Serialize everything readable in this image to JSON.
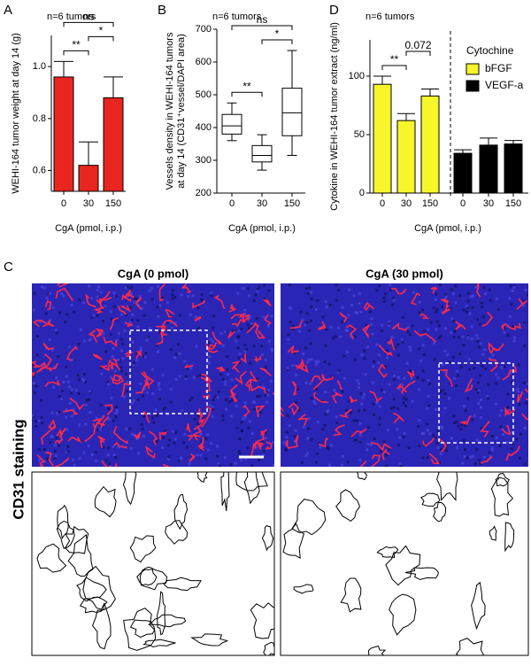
{
  "chart_data": [
    {
      "type": "bar",
      "panel": "A",
      "annotation": "n=6 tumors",
      "ylabel": [
        "WEHI-164 tumor weight at day 14 (g)"
      ],
      "xlabel": "CgA (pmol, i.p.)",
      "categories": [
        "0",
        "30",
        "150"
      ],
      "values": [
        0.96,
        0.62,
        0.88
      ],
      "errors": [
        0.06,
        0.09,
        0.08
      ],
      "color": "#e8261f",
      "ylim": [
        0.52,
        1.12
      ],
      "yticks": [
        0.6,
        0.8,
        {
          "value": 1.0,
          "label": "1.0"
        }
      ],
      "comparisons": [
        {
          "between": [
            "0",
            "30"
          ],
          "label": "**"
        },
        {
          "between": [
            "30",
            "150"
          ],
          "label": "*"
        },
        {
          "between": [
            "0",
            "150"
          ],
          "label": "ns"
        }
      ]
    },
    {
      "type": "box",
      "panel": "B",
      "annotation": "n=6 tumors",
      "ylabel": [
        "Vessels density in WEHI-164 tumors",
        "at day 14 (CD31⁺vessel/DAPI area)"
      ],
      "xlabel": "CgA (pmol, i.p.)",
      "categories": [
        "0",
        "30",
        "150"
      ],
      "boxes": [
        {
          "min": 360,
          "q1": 380,
          "median": 405,
          "q3": 440,
          "max": 475
        },
        {
          "min": 270,
          "q1": 295,
          "median": 315,
          "q3": 345,
          "max": 378
        },
        {
          "min": 315,
          "q1": 375,
          "median": 445,
          "q3": 520,
          "max": 635
        }
      ],
      "ylim": [
        200,
        700
      ],
      "yticks": [
        200,
        300,
        400,
        500,
        600,
        700
      ],
      "comparisons": [
        {
          "between": [
            "0",
            "30"
          ],
          "label": "**"
        },
        {
          "between": [
            "30",
            "150"
          ],
          "label": "*"
        },
        {
          "between": [
            "0",
            "150"
          ],
          "label": "ns"
        }
      ]
    },
    {
      "type": "bar",
      "panel": "D",
      "annotation": "n=6 tumors",
      "ylabel": [
        "Cytokine in WEHI-164 tumor extract (ng/ml)"
      ],
      "xlabel": "CgA (pmol, i.p.)",
      "categories": [
        "0",
        "30",
        "150"
      ],
      "legend_title": "Cytochine",
      "series": [
        {
          "name": "bFGF",
          "color": "#f6f62a",
          "values": [
            93,
            62,
            83
          ],
          "errors": [
            7,
            6,
            6
          ]
        },
        {
          "name": "VEGF-a",
          "color": "#000000",
          "values": [
            34,
            41,
            42
          ],
          "errors": [
            3,
            6,
            3
          ]
        }
      ],
      "ylim": [
        0,
        131
      ],
      "yticks": [
        0,
        50,
        100
      ],
      "comparisons": [
        {
          "series": "bFGF",
          "between": [
            "0",
            "30"
          ],
          "label": "**"
        },
        {
          "series": "bFGF",
          "between": [
            "30",
            "150"
          ],
          "label": "0.072"
        }
      ]
    }
  ],
  "images": {
    "panel": "C",
    "row_label": "CD31 staining",
    "columns": [
      "CgA (0 pmol)",
      "CgA (30 pmol)"
    ]
  }
}
